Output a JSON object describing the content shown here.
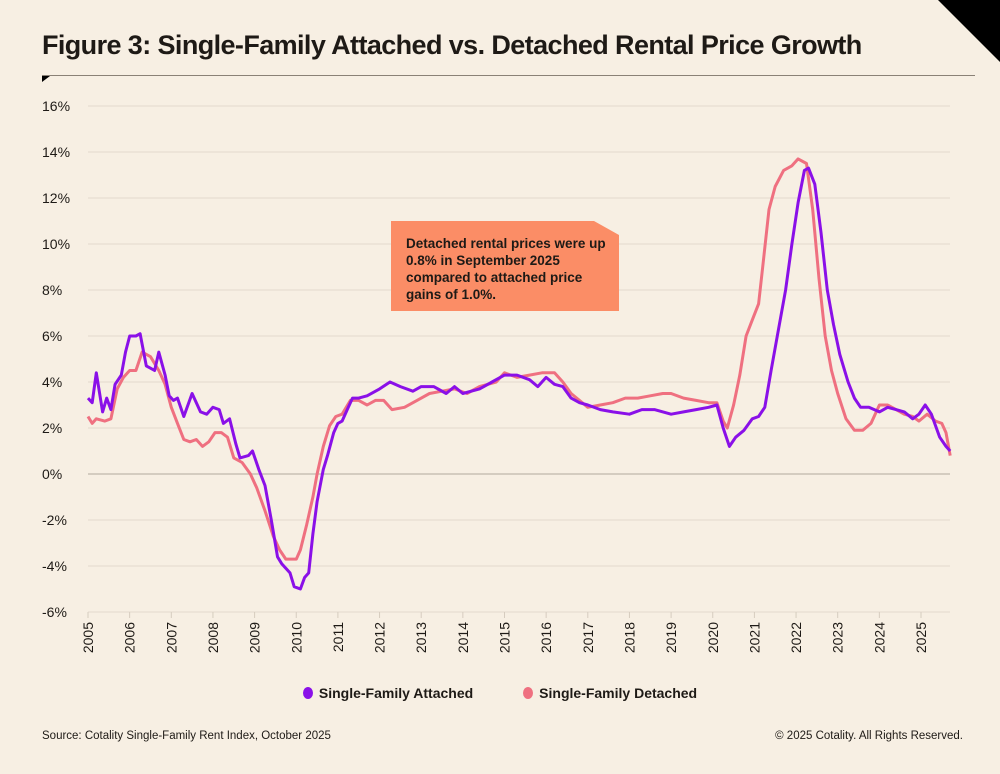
{
  "header": {
    "title": "Figure 3: Single-Family Attached vs. Detached Rental Price Growth"
  },
  "annotation": {
    "text": "Detached rental prices were up 0.8% in September 2025 compared to attached price gains of 1.0%.",
    "color": "#fb8d66"
  },
  "footer": {
    "source": "Source: Cotality Single-Family Rent Index, October 2025",
    "copyright": "© 2025 Cotality. All Rights Reserved."
  },
  "chart_data": {
    "type": "line",
    "title": "Figure 3: Single-Family Attached vs. Detached Rental Price Growth",
    "xlabel": "",
    "ylabel": "",
    "xlim": [
      2005,
      2025.75
    ],
    "ylim": [
      -6,
      16
    ],
    "grid": true,
    "legend": "bottom",
    "y_ticks": [
      "-6%",
      "-4%",
      "-2%",
      "0%",
      "2%",
      "4%",
      "6%",
      "8%",
      "10%",
      "12%",
      "14%",
      "16%"
    ],
    "y_tick_values": [
      -6,
      -4,
      -2,
      0,
      2,
      4,
      6,
      8,
      10,
      12,
      14,
      16
    ],
    "x_ticks": [
      "2005",
      "2006",
      "2007",
      "2008",
      "2009",
      "2010",
      "2011",
      "2012",
      "2013",
      "2014",
      "2015",
      "2016",
      "2017",
      "2018",
      "2019",
      "2020",
      "2021",
      "2022",
      "2023",
      "2024",
      "2025"
    ],
    "series": [
      {
        "name": "Single-Family Attached",
        "color": "#8a10e8",
        "points": [
          [
            2005.0,
            3.3
          ],
          [
            2005.1,
            3.1
          ],
          [
            2005.2,
            4.4
          ],
          [
            2005.35,
            2.7
          ],
          [
            2005.45,
            3.3
          ],
          [
            2005.55,
            2.8
          ],
          [
            2005.65,
            3.9
          ],
          [
            2005.8,
            4.3
          ],
          [
            2005.9,
            5.3
          ],
          [
            2006.0,
            6.0
          ],
          [
            2006.15,
            6.0
          ],
          [
            2006.25,
            6.1
          ],
          [
            2006.4,
            4.7
          ],
          [
            2006.5,
            4.6
          ],
          [
            2006.6,
            4.5
          ],
          [
            2006.7,
            5.3
          ],
          [
            2006.85,
            4.3
          ],
          [
            2006.95,
            3.4
          ],
          [
            2007.05,
            3.2
          ],
          [
            2007.15,
            3.3
          ],
          [
            2007.3,
            2.5
          ],
          [
            2007.5,
            3.5
          ],
          [
            2007.7,
            2.7
          ],
          [
            2007.85,
            2.6
          ],
          [
            2008.0,
            2.9
          ],
          [
            2008.15,
            2.8
          ],
          [
            2008.25,
            2.2
          ],
          [
            2008.4,
            2.4
          ],
          [
            2008.55,
            1.3
          ],
          [
            2008.65,
            0.7
          ],
          [
            2008.85,
            0.8
          ],
          [
            2008.95,
            1.0
          ],
          [
            2009.1,
            0.2
          ],
          [
            2009.25,
            -0.5
          ],
          [
            2009.4,
            -2.0
          ],
          [
            2009.55,
            -3.6
          ],
          [
            2009.65,
            -3.9
          ],
          [
            2009.75,
            -4.1
          ],
          [
            2009.85,
            -4.3
          ],
          [
            2009.95,
            -4.9
          ],
          [
            2010.1,
            -5.0
          ],
          [
            2010.2,
            -4.5
          ],
          [
            2010.3,
            -4.3
          ],
          [
            2010.4,
            -2.6
          ],
          [
            2010.5,
            -1.2
          ],
          [
            2010.65,
            0.2
          ],
          [
            2010.75,
            0.8
          ],
          [
            2010.9,
            1.8
          ],
          [
            2011.0,
            2.2
          ],
          [
            2011.1,
            2.3
          ],
          [
            2011.25,
            2.9
          ],
          [
            2011.35,
            3.3
          ],
          [
            2011.5,
            3.3
          ],
          [
            2011.7,
            3.4
          ],
          [
            2012.0,
            3.7
          ],
          [
            2012.25,
            4.0
          ],
          [
            2012.5,
            3.8
          ],
          [
            2012.8,
            3.6
          ],
          [
            2013.0,
            3.8
          ],
          [
            2013.3,
            3.8
          ],
          [
            2013.6,
            3.5
          ],
          [
            2013.8,
            3.8
          ],
          [
            2014.0,
            3.5
          ],
          [
            2014.2,
            3.6
          ],
          [
            2014.4,
            3.7
          ],
          [
            2014.7,
            4.0
          ],
          [
            2015.0,
            4.3
          ],
          [
            2015.3,
            4.3
          ],
          [
            2015.6,
            4.1
          ],
          [
            2015.8,
            3.8
          ],
          [
            2016.0,
            4.2
          ],
          [
            2016.2,
            3.9
          ],
          [
            2016.4,
            3.8
          ],
          [
            2016.6,
            3.3
          ],
          [
            2016.8,
            3.1
          ],
          [
            2017.0,
            3.0
          ],
          [
            2017.3,
            2.8
          ],
          [
            2017.6,
            2.7
          ],
          [
            2018.0,
            2.6
          ],
          [
            2018.3,
            2.8
          ],
          [
            2018.6,
            2.8
          ],
          [
            2019.0,
            2.6
          ],
          [
            2019.3,
            2.7
          ],
          [
            2019.6,
            2.8
          ],
          [
            2019.9,
            2.9
          ],
          [
            2020.1,
            3.0
          ],
          [
            2020.25,
            2.0
          ],
          [
            2020.4,
            1.2
          ],
          [
            2020.55,
            1.6
          ],
          [
            2020.75,
            1.9
          ],
          [
            2020.95,
            2.4
          ],
          [
            2021.1,
            2.5
          ],
          [
            2021.25,
            2.9
          ],
          [
            2021.4,
            4.5
          ],
          [
            2021.55,
            6.0
          ],
          [
            2021.75,
            8.0
          ],
          [
            2021.9,
            10.0
          ],
          [
            2022.05,
            11.8
          ],
          [
            2022.2,
            13.2
          ],
          [
            2022.3,
            13.3
          ],
          [
            2022.45,
            12.6
          ],
          [
            2022.6,
            10.5
          ],
          [
            2022.75,
            8.0
          ],
          [
            2022.9,
            6.5
          ],
          [
            2023.05,
            5.2
          ],
          [
            2023.25,
            4.0
          ],
          [
            2023.4,
            3.3
          ],
          [
            2023.55,
            2.9
          ],
          [
            2023.75,
            2.9
          ],
          [
            2024.0,
            2.7
          ],
          [
            2024.2,
            2.9
          ],
          [
            2024.4,
            2.8
          ],
          [
            2024.6,
            2.7
          ],
          [
            2024.8,
            2.4
          ],
          [
            2024.95,
            2.6
          ],
          [
            2025.1,
            3.0
          ],
          [
            2025.25,
            2.6
          ],
          [
            2025.45,
            1.6
          ],
          [
            2025.6,
            1.2
          ],
          [
            2025.7,
            1.0
          ]
        ]
      },
      {
        "name": "Single-Family Detached",
        "color": "#ef7080",
        "points": [
          [
            2005.0,
            2.5
          ],
          [
            2005.1,
            2.2
          ],
          [
            2005.2,
            2.4
          ],
          [
            2005.4,
            2.3
          ],
          [
            2005.55,
            2.4
          ],
          [
            2005.7,
            3.7
          ],
          [
            2005.85,
            4.2
          ],
          [
            2006.0,
            4.5
          ],
          [
            2006.15,
            4.5
          ],
          [
            2006.3,
            5.3
          ],
          [
            2006.5,
            5.1
          ],
          [
            2006.7,
            4.5
          ],
          [
            2006.85,
            3.9
          ],
          [
            2007.0,
            2.9
          ],
          [
            2007.15,
            2.2
          ],
          [
            2007.3,
            1.5
          ],
          [
            2007.45,
            1.4
          ],
          [
            2007.6,
            1.5
          ],
          [
            2007.75,
            1.2
          ],
          [
            2007.9,
            1.4
          ],
          [
            2008.05,
            1.8
          ],
          [
            2008.2,
            1.8
          ],
          [
            2008.35,
            1.6
          ],
          [
            2008.5,
            0.7
          ],
          [
            2008.7,
            0.5
          ],
          [
            2008.9,
            0.0
          ],
          [
            2009.05,
            -0.6
          ],
          [
            2009.25,
            -1.6
          ],
          [
            2009.45,
            -2.7
          ],
          [
            2009.6,
            -3.3
          ],
          [
            2009.75,
            -3.7
          ],
          [
            2009.9,
            -3.7
          ],
          [
            2010.0,
            -3.7
          ],
          [
            2010.1,
            -3.3
          ],
          [
            2010.25,
            -2.2
          ],
          [
            2010.4,
            -1.0
          ],
          [
            2010.5,
            0.0
          ],
          [
            2010.65,
            1.2
          ],
          [
            2010.8,
            2.1
          ],
          [
            2010.95,
            2.5
          ],
          [
            2011.1,
            2.6
          ],
          [
            2011.3,
            3.2
          ],
          [
            2011.5,
            3.2
          ],
          [
            2011.7,
            3.0
          ],
          [
            2011.9,
            3.2
          ],
          [
            2012.1,
            3.2
          ],
          [
            2012.3,
            2.8
          ],
          [
            2012.6,
            2.9
          ],
          [
            2012.9,
            3.2
          ],
          [
            2013.2,
            3.5
          ],
          [
            2013.5,
            3.6
          ],
          [
            2013.8,
            3.7
          ],
          [
            2014.1,
            3.5
          ],
          [
            2014.4,
            3.8
          ],
          [
            2014.8,
            4.0
          ],
          [
            2015.0,
            4.4
          ],
          [
            2015.3,
            4.2
          ],
          [
            2015.6,
            4.3
          ],
          [
            2015.9,
            4.4
          ],
          [
            2016.2,
            4.4
          ],
          [
            2016.4,
            4.0
          ],
          [
            2016.6,
            3.5
          ],
          [
            2016.8,
            3.2
          ],
          [
            2017.0,
            2.9
          ],
          [
            2017.3,
            3.0
          ],
          [
            2017.6,
            3.1
          ],
          [
            2017.9,
            3.3
          ],
          [
            2018.2,
            3.3
          ],
          [
            2018.5,
            3.4
          ],
          [
            2018.8,
            3.5
          ],
          [
            2019.0,
            3.5
          ],
          [
            2019.3,
            3.3
          ],
          [
            2019.6,
            3.2
          ],
          [
            2019.9,
            3.1
          ],
          [
            2020.1,
            3.1
          ],
          [
            2020.25,
            2.3
          ],
          [
            2020.35,
            2.0
          ],
          [
            2020.5,
            3.0
          ],
          [
            2020.65,
            4.3
          ],
          [
            2020.8,
            6.0
          ],
          [
            2020.95,
            6.7
          ],
          [
            2021.1,
            7.4
          ],
          [
            2021.2,
            9.0
          ],
          [
            2021.35,
            11.5
          ],
          [
            2021.5,
            12.5
          ],
          [
            2021.7,
            13.2
          ],
          [
            2021.9,
            13.4
          ],
          [
            2022.05,
            13.7
          ],
          [
            2022.25,
            13.5
          ],
          [
            2022.4,
            11.5
          ],
          [
            2022.55,
            8.5
          ],
          [
            2022.7,
            6.0
          ],
          [
            2022.85,
            4.5
          ],
          [
            2023.0,
            3.5
          ],
          [
            2023.2,
            2.4
          ],
          [
            2023.4,
            1.9
          ],
          [
            2023.6,
            1.9
          ],
          [
            2023.8,
            2.2
          ],
          [
            2024.0,
            3.0
          ],
          [
            2024.2,
            3.0
          ],
          [
            2024.4,
            2.8
          ],
          [
            2024.6,
            2.6
          ],
          [
            2024.8,
            2.5
          ],
          [
            2024.95,
            2.3
          ],
          [
            2025.15,
            2.6
          ],
          [
            2025.35,
            2.3
          ],
          [
            2025.5,
            2.2
          ],
          [
            2025.6,
            1.8
          ],
          [
            2025.7,
            0.8
          ]
        ]
      }
    ]
  }
}
